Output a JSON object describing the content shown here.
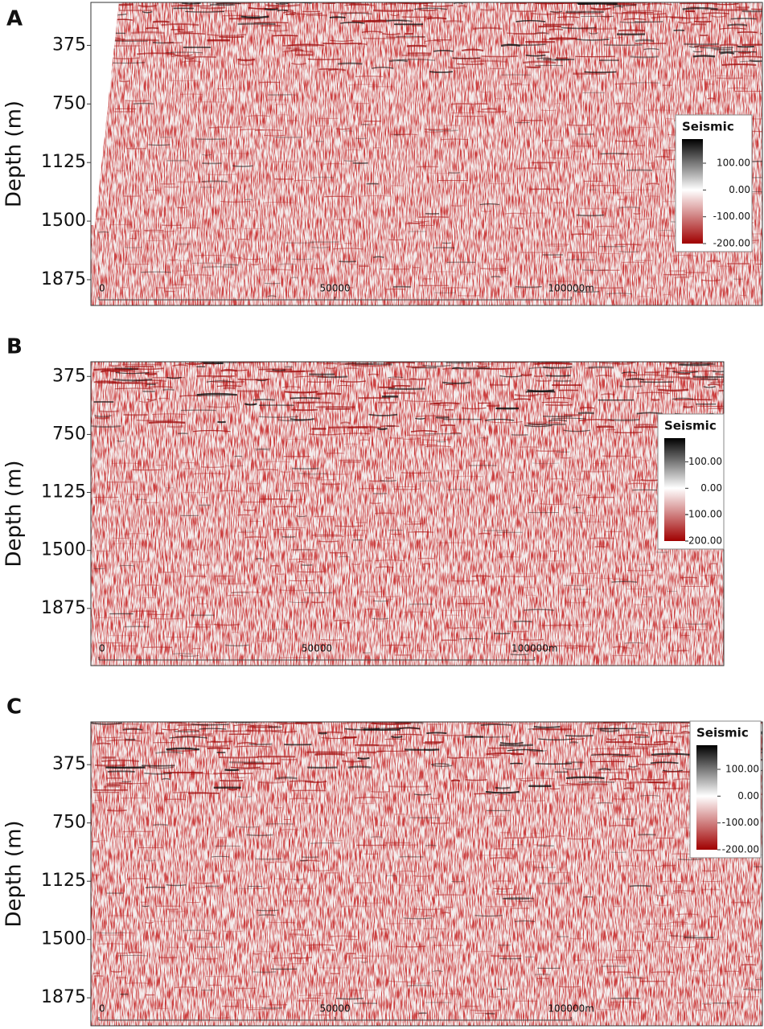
{
  "chart_data": [
    {
      "type": "seismic-section",
      "panel_label": "A",
      "y_label": "Depth (m)",
      "y_inverted": true,
      "ylim": [
        100,
        2040
      ],
      "yticks": [
        375,
        750,
        1125,
        1500,
        1875
      ],
      "xlim": [
        -1700,
        140500
      ],
      "scale_ticks": [
        0,
        50000,
        {
          "value": 100000,
          "label": "100000m"
        }
      ],
      "colorbar": {
        "title": "Seismic",
        "clim": [
          -200,
          190
        ],
        "colormap": [
          "#000000",
          "#ffffff",
          "#a00000"
        ],
        "ticks": [
          {
            "value": 100,
            "label": "100.00"
          },
          {
            "value": 0,
            "label": "0.00"
          },
          {
            "value": -100,
            "label": "-100.00"
          },
          {
            "value": -200,
            "label": "-200.00"
          }
        ]
      }
    },
    {
      "type": "seismic-section",
      "panel_label": "B",
      "y_label": "Depth (m)",
      "y_inverted": true,
      "ylim": [
        280,
        2245
      ],
      "yticks": [
        375,
        750,
        1125,
        1500,
        1875
      ],
      "xlim": [
        -1850,
        143400
      ],
      "scale_ticks": [
        0,
        50000,
        {
          "value": 100000,
          "label": "100000m"
        }
      ],
      "colorbar": {
        "title": "Seismic",
        "clim": [
          -200,
          190
        ],
        "colormap": [
          "#000000",
          "#ffffff",
          "#a00000"
        ],
        "ticks": [
          {
            "value": 100,
            "label": "100.00"
          },
          {
            "value": 0,
            "label": "0.00"
          },
          {
            "value": -100,
            "label": "-100.00"
          },
          {
            "value": -200,
            "label": "-200.00"
          }
        ]
      }
    },
    {
      "type": "seismic-section",
      "panel_label": "C",
      "y_label": "Depth (m)",
      "y_inverted": true,
      "ylim": [
        100,
        2055
      ],
      "yticks": [
        375,
        750,
        1125,
        1500,
        1875
      ],
      "xlim": [
        -1700,
        140500
      ],
      "scale_ticks": [
        0,
        50000,
        {
          "value": 100000,
          "label": "100000m"
        }
      ],
      "colorbar": {
        "title": "Seismic",
        "clim": [
          -200,
          190
        ],
        "colormap": [
          "#000000",
          "#ffffff",
          "#a00000"
        ],
        "ticks": [
          {
            "value": 100,
            "label": "100.00"
          },
          {
            "value": 0,
            "label": "0.00"
          },
          {
            "value": -100,
            "label": "-100.00"
          },
          {
            "value": -200,
            "label": "-200.00"
          }
        ]
      }
    }
  ]
}
